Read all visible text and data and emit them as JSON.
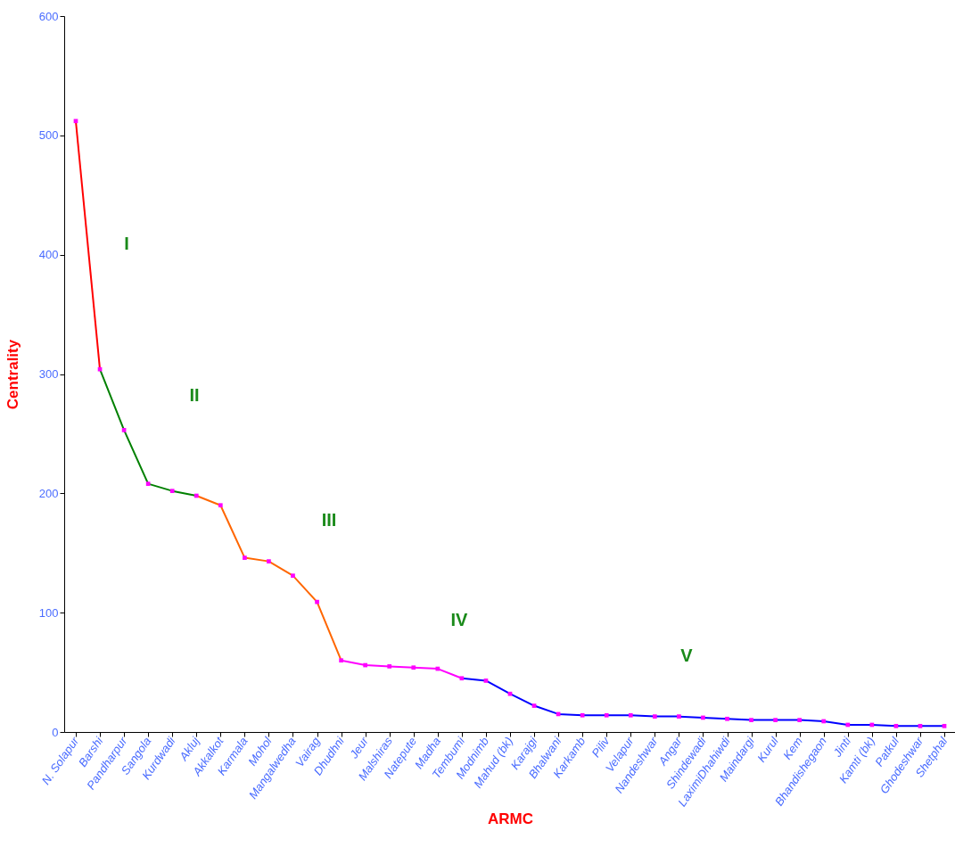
{
  "chart_data": {
    "type": "line",
    "xlabel": "ARMC",
    "ylabel": "Centrality",
    "categories": [
      "N. Solapur",
      "Barshi",
      "Pandharpur",
      "Sangola",
      "Kurdwadi",
      "Akluj",
      "Akkalkot",
      "Karmala",
      "Mohol",
      "Mangalwedha",
      "Vairag",
      "Dhudhni",
      "Jeur",
      "Malshiras",
      "Natepute",
      "Madha",
      "Tembumi",
      "Modnimb",
      "Mahud (bk)",
      "Karajgi",
      "Bhalwani",
      "Karkamb",
      "Piliv",
      "Velapur",
      "Nandeshwar",
      "Angar",
      "Shindewadi",
      "LaximiDhahiwdi",
      "Maindargi",
      "Kurul",
      "Kem",
      "Bhandishegaon",
      "Jinti",
      "Kamti (bk)",
      "Patkul",
      "Ghodeshwar",
      "Shetphal"
    ],
    "series": [
      {
        "color": "#ff0000",
        "values": [
          512,
          304,
          null,
          null,
          null,
          null,
          null,
          null,
          null,
          null,
          null,
          null,
          null,
          null,
          null,
          null,
          null,
          null,
          null,
          null,
          null,
          null,
          null,
          null,
          null,
          null,
          null,
          null,
          null,
          null,
          null,
          null,
          null,
          null,
          null,
          null,
          null
        ]
      },
      {
        "color": "#008000",
        "values": [
          null,
          304,
          253,
          208,
          202,
          198,
          null,
          null,
          null,
          null,
          null,
          null,
          null,
          null,
          null,
          null,
          null,
          null,
          null,
          null,
          null,
          null,
          null,
          null,
          null,
          null,
          null,
          null,
          null,
          null,
          null,
          null,
          null,
          null,
          null,
          null,
          null
        ]
      },
      {
        "color": "#ff6600",
        "values": [
          null,
          null,
          null,
          null,
          null,
          198,
          190,
          146,
          143,
          131,
          109,
          60,
          null,
          null,
          null,
          null,
          null,
          null,
          null,
          null,
          null,
          null,
          null,
          null,
          null,
          null,
          null,
          null,
          null,
          null,
          null,
          null,
          null,
          null,
          null,
          null,
          null
        ]
      },
      {
        "color": "#ff00ff",
        "values": [
          null,
          null,
          null,
          null,
          null,
          null,
          null,
          null,
          null,
          null,
          null,
          60,
          56,
          55,
          54,
          53,
          45,
          null,
          null,
          null,
          null,
          null,
          null,
          null,
          null,
          null,
          null,
          null,
          null,
          null,
          null,
          null,
          null,
          null,
          null,
          null,
          null
        ]
      },
      {
        "color": "#0000ff",
        "values": [
          null,
          null,
          null,
          null,
          null,
          null,
          null,
          null,
          null,
          null,
          null,
          null,
          null,
          null,
          null,
          null,
          45,
          43,
          32,
          22,
          15,
          14,
          14,
          14,
          13,
          13,
          12,
          11,
          10,
          10,
          10,
          9,
          6,
          6,
          5,
          5,
          5
        ]
      },
      {
        "type": "scatter",
        "marker": "square",
        "color": "#ff00ff",
        "values": [
          512,
          304,
          253,
          208,
          202,
          198,
          190,
          146,
          143,
          131,
          109,
          60,
          56,
          55,
          54,
          53,
          45,
          43,
          32,
          22,
          15,
          14,
          14,
          14,
          13,
          13,
          12,
          11,
          10,
          10,
          10,
          9,
          6,
          6,
          5,
          5,
          5
        ]
      }
    ],
    "ylim": [
      0,
      600
    ],
    "yticks": [
      0,
      100,
      200,
      300,
      400,
      500,
      600
    ],
    "grid": false,
    "marker": "none",
    "annotations": [
      "I",
      "II",
      "III",
      "IV",
      "V"
    ]
  }
}
